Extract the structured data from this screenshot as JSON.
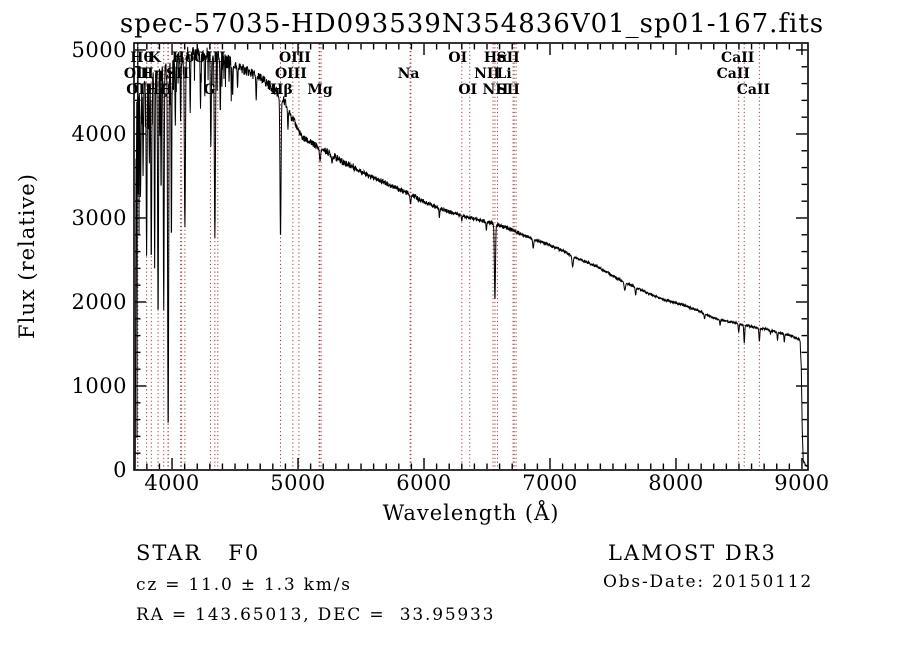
{
  "title": "spec-57035-HD093539N354836V01_sp01-167.fits",
  "footer": {
    "class_label": "STAR   F0",
    "cz": "cz = 11.0 ± 1.3 km/s",
    "radec": "RA = 143.65013, DEC =  33.95933",
    "survey": "LAMOST DR3",
    "obs_date": "Obs-Date: 20150112"
  },
  "chart_data": {
    "type": "line",
    "title": "spec-57035-HD093539N354836V01_sp01-167.fits",
    "xlabel": "Wavelength (Å)",
    "ylabel": "Flux (relative)",
    "xlim": [
      3698,
      9048
    ],
    "ylim": [
      0,
      5083
    ],
    "xticks": [
      4000,
      5000,
      6000,
      7000,
      8000,
      9000
    ],
    "yticks": [
      0,
      1000,
      2000,
      3000,
      4000,
      5000
    ],
    "x_minor_step": 100,
    "y_minor_step": 200,
    "grid": false,
    "legend": "none",
    "line_color": "#000000",
    "axis_color": "#000000",
    "ref_line_color": "#9e3a3a",
    "spectral_line_wavelengths": [
      3726,
      3729,
      3798,
      3835,
      3889,
      3934,
      3968,
      3970,
      4068,
      4076,
      4102,
      4305,
      4340,
      4363,
      4861,
      4959,
      5007,
      5167,
      5172,
      5183,
      5890,
      5896,
      6300,
      6363,
      6548,
      6563,
      6583,
      6707,
      6716,
      6731,
      8498,
      8542,
      8662
    ],
    "line_labels": [
      {
        "text": "Hθ",
        "row": 0,
        "wavelength": 3798,
        "dx": -5
      },
      {
        "text": "K",
        "row": 0,
        "wavelength": 3934,
        "dx": -9
      },
      {
        "text": "Hδ",
        "row": 0,
        "wavelength": 4102,
        "dx": -2
      },
      {
        "text": "OIII",
        "row": 0,
        "wavelength": 4363,
        "dx": -8
      },
      {
        "text": "OIII",
        "row": 0,
        "wavelength": 5007,
        "dx": -4
      },
      {
        "text": "OI",
        "row": 0,
        "wavelength": 6300,
        "dx": -4
      },
      {
        "text": "Hα",
        "row": 0,
        "wavelength": 6563,
        "dx": 1
      },
      {
        "text": "SII",
        "row": 0,
        "wavelength": 6731,
        "dx": -8
      },
      {
        "text": "CaII",
        "row": 0,
        "wavelength": 8498,
        "dx": -1
      },
      {
        "text": "OII",
        "row": 1,
        "wavelength": 3726,
        "dx": -1
      },
      {
        "text": "Hη",
        "row": 1,
        "wavelength": 3835,
        "dx": 1
      },
      {
        "text": "SII",
        "row": 1,
        "wavelength": 4068,
        "dx": -3
      },
      {
        "text": "OIII",
        "row": 1,
        "wavelength": 4959,
        "dx": -2
      },
      {
        "text": "Na",
        "row": 1,
        "wavelength": 5893,
        "dx": -2
      },
      {
        "text": "NII",
        "row": 1,
        "wavelength": 6548,
        "dx": -6
      },
      {
        "text": "Li",
        "row": 1,
        "wavelength": 6707,
        "dx": -9
      },
      {
        "text": "CaII",
        "row": 1,
        "wavelength": 8542,
        "dx": -11
      },
      {
        "text": "OII",
        "row": 2,
        "wavelength": 3729,
        "dx": 1
      },
      {
        "text": "Hζ",
        "row": 2,
        "wavelength": 3889,
        "dx": -1
      },
      {
        "text": "H",
        "row": 2,
        "wavelength": 3968,
        "dx": -2
      },
      {
        "text": "G",
        "row": 2,
        "wavelength": 4305,
        "dx": -1
      },
      {
        "text": "Hβ",
        "row": 2,
        "wavelength": 4861,
        "dx": 1
      },
      {
        "text": "Mg",
        "row": 2,
        "wavelength": 5175,
        "dx": 0
      },
      {
        "text": "OI",
        "row": 2,
        "wavelength": 6363,
        "dx": -2
      },
      {
        "text": "NII",
        "row": 2,
        "wavelength": 6583,
        "dx": -2
      },
      {
        "text": "SII",
        "row": 2,
        "wavelength": 6716,
        "dx": -6
      },
      {
        "text": "CaII",
        "row": 2,
        "wavelength": 8662,
        "dx": -6
      }
    ],
    "continuum": [
      [
        3708,
        2800
      ],
      [
        3715,
        3700
      ],
      [
        3722,
        4250
      ],
      [
        3740,
        4500
      ],
      [
        3780,
        4620
      ],
      [
        3840,
        4720
      ],
      [
        3900,
        4800
      ],
      [
        3960,
        4840
      ],
      [
        4020,
        4880
      ],
      [
        4100,
        4930
      ],
      [
        4180,
        4970
      ],
      [
        4260,
        4960
      ],
      [
        4340,
        4930
      ],
      [
        4420,
        4870
      ],
      [
        4500,
        4820
      ],
      [
        4580,
        4760
      ],
      [
        4660,
        4700
      ],
      [
        4740,
        4620
      ],
      [
        4800,
        4550
      ],
      [
        4861,
        4450
      ],
      [
        4910,
        4330
      ],
      [
        4960,
        4180
      ],
      [
        5030,
        3960
      ],
      [
        5130,
        3870
      ],
      [
        5230,
        3790
      ],
      [
        5340,
        3680
      ],
      [
        5450,
        3600
      ],
      [
        5560,
        3500
      ],
      [
        5680,
        3430
      ],
      [
        5800,
        3340
      ],
      [
        5893,
        3280
      ],
      [
        6000,
        3190
      ],
      [
        6150,
        3100
      ],
      [
        6300,
        3030
      ],
      [
        6450,
        2970
      ],
      [
        6563,
        2930
      ],
      [
        6700,
        2860
      ],
      [
        6800,
        2790
      ],
      [
        6900,
        2730
      ],
      [
        7000,
        2680
      ],
      [
        7100,
        2610
      ],
      [
        7200,
        2530
      ],
      [
        7300,
        2470
      ],
      [
        7400,
        2400
      ],
      [
        7500,
        2310
      ],
      [
        7600,
        2230
      ],
      [
        7700,
        2160
      ],
      [
        7800,
        2090
      ],
      [
        7900,
        2030
      ],
      [
        8000,
        1990
      ],
      [
        8100,
        1940
      ],
      [
        8200,
        1880
      ],
      [
        8300,
        1810
      ],
      [
        8400,
        1770
      ],
      [
        8500,
        1745
      ],
      [
        8600,
        1705
      ],
      [
        8700,
        1680
      ],
      [
        8800,
        1645
      ],
      [
        8900,
        1605
      ],
      [
        8960,
        1570
      ],
      [
        8985,
        1545
      ],
      [
        8995,
        1200
      ],
      [
        9002,
        500
      ],
      [
        9010,
        120
      ],
      [
        9025,
        60
      ],
      [
        9040,
        50
      ]
    ],
    "absorption_dips": [
      [
        3750,
        3300,
        5
      ],
      [
        3770,
        3500,
        4
      ],
      [
        3798,
        2550,
        5
      ],
      [
        3820,
        3650,
        4
      ],
      [
        3835,
        2480,
        5
      ],
      [
        3862,
        2400,
        4
      ],
      [
        3889,
        1800,
        5
      ],
      [
        3913,
        3300,
        4
      ],
      [
        3934,
        1900,
        5
      ],
      [
        3969,
        450,
        6
      ],
      [
        3995,
        2700,
        4
      ],
      [
        4026,
        4100,
        4
      ],
      [
        4068,
        4150,
        4
      ],
      [
        4102,
        2890,
        6
      ],
      [
        4144,
        4250,
        4
      ],
      [
        4226,
        4300,
        4
      ],
      [
        4260,
        4450,
        4
      ],
      [
        4308,
        3850,
        5
      ],
      [
        4340,
        2760,
        6
      ],
      [
        4383,
        4250,
        4
      ],
      [
        4481,
        4450,
        4
      ],
      [
        4520,
        4550,
        4
      ],
      [
        4668,
        4400,
        4
      ],
      [
        4861,
        2760,
        6
      ],
      [
        4920,
        4050,
        4
      ],
      [
        5175,
        3680,
        7
      ],
      [
        5270,
        3650,
        5
      ],
      [
        5893,
        3170,
        6
      ],
      [
        6122,
        3000,
        4
      ],
      [
        6300,
        2960,
        4
      ],
      [
        6495,
        2850,
        4
      ],
      [
        6563,
        2020,
        6
      ],
      [
        6867,
        2640,
        6
      ],
      [
        7180,
        2420,
        7
      ],
      [
        7594,
        2140,
        8
      ],
      [
        7680,
        2080,
        5
      ],
      [
        8227,
        1800,
        5
      ],
      [
        8350,
        1720,
        4
      ],
      [
        8498,
        1640,
        5
      ],
      [
        8542,
        1510,
        5
      ],
      [
        8662,
        1530,
        5
      ],
      [
        8750,
        1620,
        4
      ],
      [
        8806,
        1540,
        4
      ],
      [
        8860,
        1520,
        4
      ]
    ],
    "noise_amplitude": [
      [
        3728,
        1150
      ],
      [
        3762,
        450
      ],
      [
        4000,
        190
      ],
      [
        4480,
        100
      ],
      [
        4950,
        60
      ],
      [
        5450,
        42
      ],
      [
        6000,
        30
      ],
      [
        6800,
        22
      ],
      [
        7600,
        17
      ],
      [
        9048,
        14
      ]
    ]
  }
}
